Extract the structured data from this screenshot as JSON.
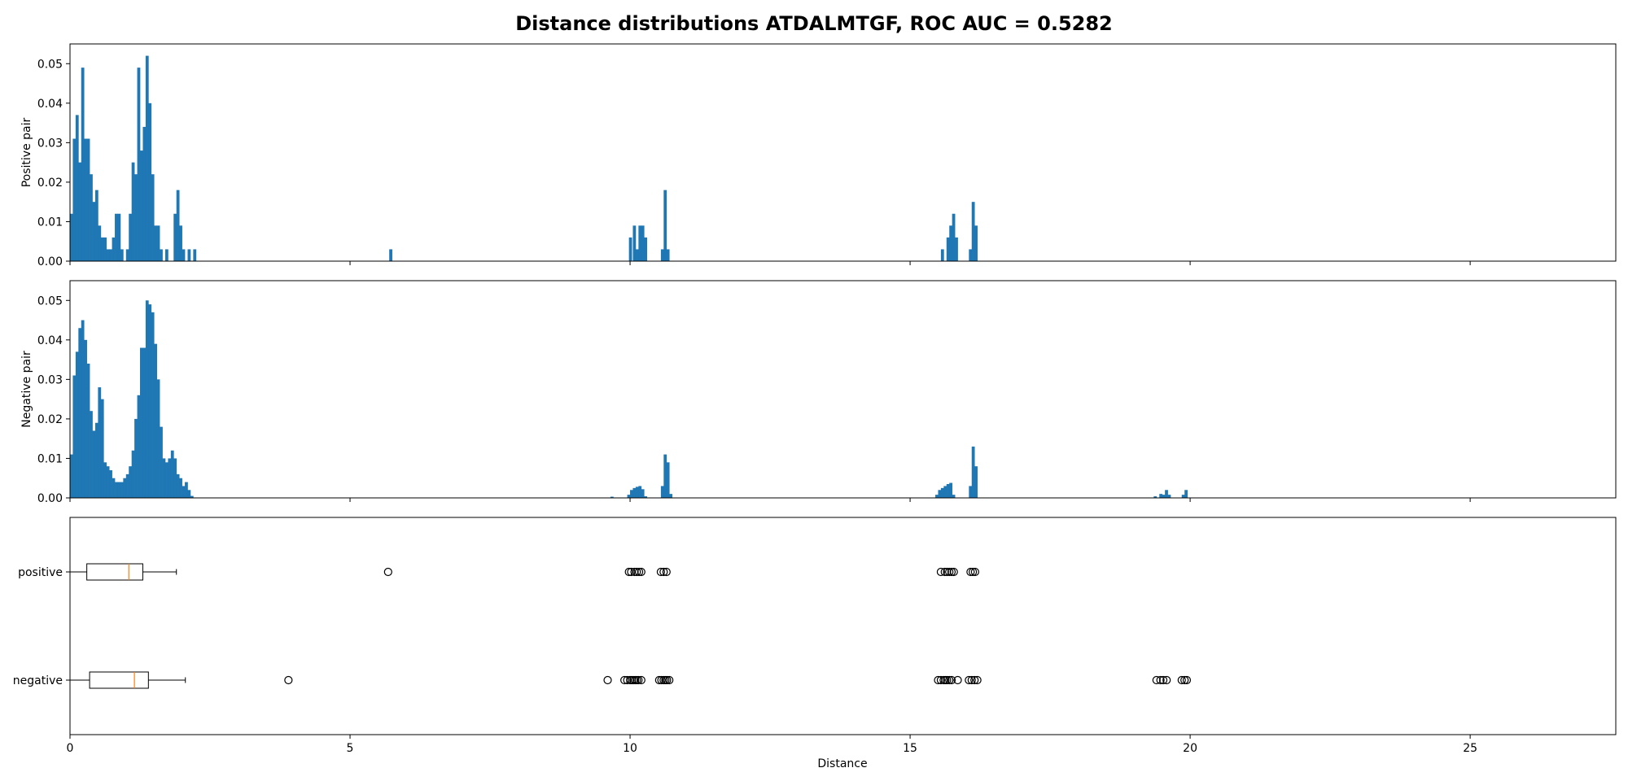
{
  "chart_data": {
    "title": "Distance distributions ATDALMTGF, ROC AUC = 0.5282",
    "xlabel": "Distance",
    "xlim": [
      0,
      27.6
    ],
    "xticks": [
      0,
      5,
      10,
      15,
      20,
      25
    ],
    "bar_color": "#1f77b4",
    "median_color": "#ff7f0e",
    "grid": false,
    "histograms": [
      {
        "type": "bar",
        "name": "positive",
        "ylabel": "Positive pair",
        "ylim": [
          0,
          0.055
        ],
        "yticks": [
          0.0,
          0.01,
          0.02,
          0.03,
          0.04,
          0.05
        ],
        "bin_width": 0.055,
        "bins": [
          [
            0.0,
            0.012
          ],
          [
            0.05,
            0.031
          ],
          [
            0.1,
            0.037
          ],
          [
            0.15,
            0.025
          ],
          [
            0.2,
            0.049
          ],
          [
            0.25,
            0.031
          ],
          [
            0.3,
            0.031
          ],
          [
            0.35,
            0.022
          ],
          [
            0.4,
            0.015
          ],
          [
            0.45,
            0.018
          ],
          [
            0.5,
            0.009
          ],
          [
            0.55,
            0.006
          ],
          [
            0.6,
            0.006
          ],
          [
            0.65,
            0.003
          ],
          [
            0.7,
            0.003
          ],
          [
            0.75,
            0.006
          ],
          [
            0.8,
            0.012
          ],
          [
            0.85,
            0.012
          ],
          [
            0.9,
            0.003
          ],
          [
            0.95,
            0.0
          ],
          [
            1.0,
            0.003
          ],
          [
            1.05,
            0.012
          ],
          [
            1.1,
            0.025
          ],
          [
            1.15,
            0.022
          ],
          [
            1.2,
            0.049
          ],
          [
            1.25,
            0.028
          ],
          [
            1.3,
            0.034
          ],
          [
            1.35,
            0.052
          ],
          [
            1.4,
            0.04
          ],
          [
            1.45,
            0.022
          ],
          [
            1.5,
            0.009
          ],
          [
            1.55,
            0.009
          ],
          [
            1.6,
            0.003
          ],
          [
            1.7,
            0.003
          ],
          [
            1.85,
            0.012
          ],
          [
            1.9,
            0.018
          ],
          [
            1.95,
            0.009
          ],
          [
            2.0,
            0.003
          ],
          [
            2.1,
            0.003
          ],
          [
            2.2,
            0.003
          ],
          [
            5.7,
            0.003
          ],
          [
            9.98,
            0.006
          ],
          [
            10.05,
            0.009
          ],
          [
            10.1,
            0.003
          ],
          [
            10.15,
            0.009
          ],
          [
            10.2,
            0.009
          ],
          [
            10.25,
            0.006
          ],
          [
            10.55,
            0.003
          ],
          [
            10.6,
            0.018
          ],
          [
            10.65,
            0.003
          ],
          [
            15.55,
            0.003
          ],
          [
            15.65,
            0.006
          ],
          [
            15.7,
            0.009
          ],
          [
            15.75,
            0.012
          ],
          [
            15.8,
            0.006
          ],
          [
            16.05,
            0.003
          ],
          [
            16.1,
            0.015
          ],
          [
            16.15,
            0.009
          ]
        ]
      },
      {
        "type": "bar",
        "name": "negative",
        "ylabel": "Negative pair",
        "ylim": [
          0,
          0.055
        ],
        "yticks": [
          0.0,
          0.01,
          0.02,
          0.03,
          0.04,
          0.05
        ],
        "bin_width": 0.055,
        "bins": [
          [
            0.0,
            0.011
          ],
          [
            0.05,
            0.031
          ],
          [
            0.1,
            0.037
          ],
          [
            0.15,
            0.043
          ],
          [
            0.2,
            0.045
          ],
          [
            0.25,
            0.04
          ],
          [
            0.3,
            0.034
          ],
          [
            0.35,
            0.022
          ],
          [
            0.4,
            0.017
          ],
          [
            0.45,
            0.019
          ],
          [
            0.5,
            0.028
          ],
          [
            0.55,
            0.025
          ],
          [
            0.6,
            0.009
          ],
          [
            0.65,
            0.008
          ],
          [
            0.7,
            0.007
          ],
          [
            0.75,
            0.005
          ],
          [
            0.8,
            0.004
          ],
          [
            0.85,
            0.004
          ],
          [
            0.9,
            0.004
          ],
          [
            0.95,
            0.005
          ],
          [
            1.0,
            0.006
          ],
          [
            1.05,
            0.008
          ],
          [
            1.1,
            0.012
          ],
          [
            1.15,
            0.02
          ],
          [
            1.2,
            0.026
          ],
          [
            1.25,
            0.038
          ],
          [
            1.3,
            0.038
          ],
          [
            1.35,
            0.05
          ],
          [
            1.4,
            0.049
          ],
          [
            1.45,
            0.047
          ],
          [
            1.5,
            0.039
          ],
          [
            1.55,
            0.03
          ],
          [
            1.6,
            0.018
          ],
          [
            1.65,
            0.01
          ],
          [
            1.7,
            0.009
          ],
          [
            1.75,
            0.01
          ],
          [
            1.8,
            0.012
          ],
          [
            1.85,
            0.01
          ],
          [
            1.9,
            0.006
          ],
          [
            1.95,
            0.005
          ],
          [
            2.0,
            0.003
          ],
          [
            2.05,
            0.004
          ],
          [
            2.1,
            0.002
          ],
          [
            2.15,
            0.0005
          ],
          [
            9.65,
            0.0003
          ],
          [
            9.95,
            0.0008
          ],
          [
            10.0,
            0.002
          ],
          [
            10.05,
            0.0025
          ],
          [
            10.1,
            0.0028
          ],
          [
            10.15,
            0.003
          ],
          [
            10.2,
            0.0022
          ],
          [
            10.25,
            0.0004
          ],
          [
            10.55,
            0.003
          ],
          [
            10.6,
            0.011
          ],
          [
            10.65,
            0.009
          ],
          [
            10.7,
            0.001
          ],
          [
            15.45,
            0.0008
          ],
          [
            15.5,
            0.002
          ],
          [
            15.55,
            0.0025
          ],
          [
            15.6,
            0.003
          ],
          [
            15.65,
            0.0035
          ],
          [
            15.7,
            0.0038
          ],
          [
            15.75,
            0.0008
          ],
          [
            16.05,
            0.003
          ],
          [
            16.1,
            0.013
          ],
          [
            16.15,
            0.008
          ],
          [
            19.35,
            0.0004
          ],
          [
            19.45,
            0.001
          ],
          [
            19.5,
            0.0008
          ],
          [
            19.55,
            0.002
          ],
          [
            19.6,
            0.0008
          ],
          [
            19.85,
            0.0008
          ],
          [
            19.9,
            0.002
          ]
        ]
      }
    ],
    "boxplot": {
      "type": "box",
      "categories": [
        "positive",
        "negative"
      ],
      "boxes": [
        {
          "name": "positive",
          "whisker_low": 0.0,
          "q1": 0.3,
          "median": 1.05,
          "q3": 1.3,
          "whisker_high": 1.9,
          "outliers": [
            5.68,
            9.98,
            10.02,
            10.08,
            10.12,
            10.16,
            10.2,
            10.55,
            10.6,
            10.65,
            15.55,
            15.62,
            15.66,
            15.7,
            15.74,
            15.78,
            16.08,
            16.12,
            16.16
          ]
        },
        {
          "name": "negative",
          "whisker_low": 0.0,
          "q1": 0.35,
          "median": 1.15,
          "q3": 1.4,
          "whisker_high": 2.06,
          "outliers": [
            3.9,
            9.6,
            9.9,
            9.95,
            10.0,
            10.03,
            10.06,
            10.09,
            10.12,
            10.15,
            10.2,
            10.52,
            10.56,
            10.6,
            10.63,
            10.66,
            10.7,
            15.5,
            15.55,
            15.6,
            15.63,
            15.66,
            15.7,
            15.74,
            15.85,
            16.05,
            16.1,
            16.15,
            16.2,
            19.4,
            19.47,
            19.52,
            19.58,
            19.85,
            19.9,
            19.94
          ]
        }
      ]
    }
  }
}
